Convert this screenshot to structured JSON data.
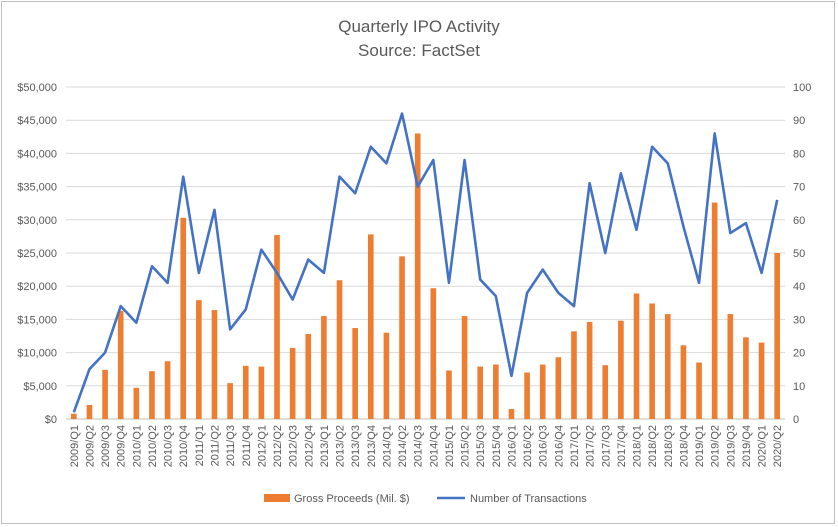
{
  "chart_data": {
    "type": "bar",
    "title": "Quarterly IPO Activity",
    "subtitle": "Source: FactSet",
    "categories": [
      "2009/Q1",
      "2009/Q2",
      "2009/Q3",
      "2009/Q4",
      "2010/Q1",
      "2010/Q2",
      "2010/Q3",
      "2010/Q4",
      "2011/Q1",
      "2011/Q2",
      "2011/Q3",
      "2011/Q4",
      "2012/Q1",
      "2012/Q2",
      "2012/Q3",
      "2012/Q4",
      "2013/Q1",
      "2013/Q2",
      "2013/Q3",
      "2013/Q4",
      "2014/Q1",
      "2014/Q2",
      "2014/Q3",
      "2014/Q4",
      "2015/Q1",
      "2015/Q2",
      "2015/Q3",
      "2015/Q4",
      "2016/Q1",
      "2016/Q2",
      "2016/Q3",
      "2016/Q4",
      "2017/Q1",
      "2017/Q2",
      "2017/Q3",
      "2017/Q4",
      "2018/Q1",
      "2018/Q2",
      "2018/Q3",
      "2018/Q4",
      "2019/Q1",
      "2019/Q2",
      "2019/Q3",
      "2019/Q4",
      "2020/Q1",
      "2020/Q2"
    ],
    "series": [
      {
        "name": "Gross Proceeds (Mil. $)",
        "type": "bar",
        "axis": "left",
        "color": "#ED7D31",
        "values": [
          800,
          2100,
          7400,
          16300,
          4700,
          7200,
          8700,
          30300,
          17900,
          16400,
          5400,
          8000,
          7900,
          27700,
          10700,
          12800,
          15500,
          20900,
          13700,
          27800,
          13000,
          24500,
          43000,
          19700,
          7300,
          15500,
          7900,
          8200,
          1500,
          7000,
          8200,
          9300,
          13200,
          14600,
          8100,
          14800,
          18900,
          17400,
          15800,
          11100,
          8500,
          32600,
          15800,
          12300,
          11500,
          25000
        ]
      },
      {
        "name": "Number of Transactions",
        "type": "line",
        "axis": "right",
        "color": "#4472C4",
        "values": [
          2,
          15,
          20,
          34,
          29,
          46,
          41,
          73,
          44,
          63,
          27,
          33,
          51,
          44,
          36,
          48,
          44,
          73,
          68,
          82,
          77,
          92,
          70,
          78,
          41,
          78,
          42,
          37,
          13,
          38,
          45,
          38,
          34,
          71,
          50,
          74,
          57,
          82,
          77,
          58,
          41,
          86,
          56,
          59,
          44,
          66
        ]
      }
    ],
    "ylim_left": [
      0,
      50000
    ],
    "ylim_right": [
      0,
      100
    ],
    "left_ticks": [
      "$0",
      "$5,000",
      "$10,000",
      "$15,000",
      "$20,000",
      "$25,000",
      "$30,000",
      "$35,000",
      "$40,000",
      "$45,000",
      "$50,000"
    ],
    "right_ticks": [
      "0",
      "10",
      "20",
      "30",
      "40",
      "50",
      "60",
      "70",
      "80",
      "90",
      "100"
    ],
    "grid": true,
    "legend": "bottom"
  }
}
